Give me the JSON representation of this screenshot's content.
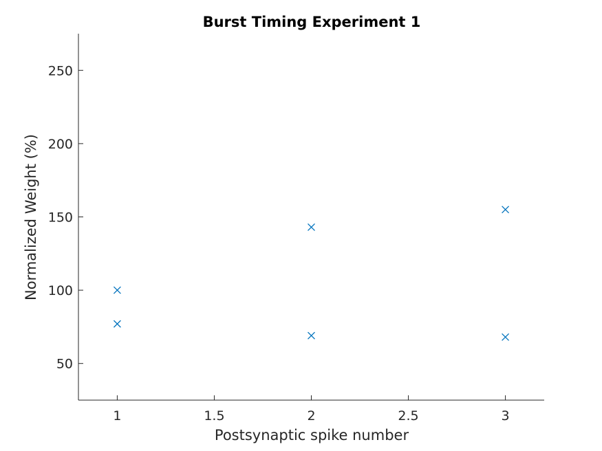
{
  "chart_data": {
    "type": "scatter",
    "title": "Burst Timing Experiment 1",
    "xlabel": "Postsynaptic spike number",
    "ylabel": "Normalized Weight (%)",
    "xlim": [
      0.8,
      3.2
    ],
    "ylim": [
      25,
      275
    ],
    "xticks": [
      1,
      1.5,
      2,
      2.5,
      3
    ],
    "xtick_labels": [
      "1",
      "1.5",
      "2",
      "2.5",
      "3"
    ],
    "yticks": [
      50,
      100,
      150,
      200,
      250
    ],
    "ytick_labels": [
      "50",
      "100",
      "150",
      "200",
      "250"
    ],
    "grid": false,
    "marker": "x",
    "marker_color": "#0072BD",
    "points": [
      {
        "x": 1,
        "y": 100
      },
      {
        "x": 1,
        "y": 77
      },
      {
        "x": 2,
        "y": 143
      },
      {
        "x": 2,
        "y": 69
      },
      {
        "x": 3,
        "y": 155
      },
      {
        "x": 3,
        "y": 68
      }
    ]
  }
}
